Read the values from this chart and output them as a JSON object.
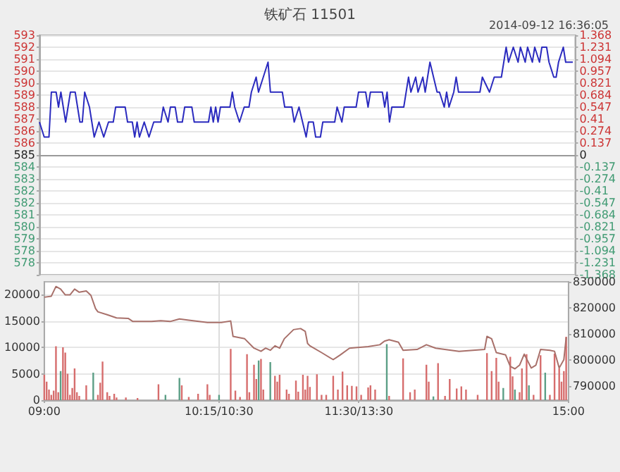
{
  "chart_data": [
    {
      "type": "line",
      "title": "铁矿石 11501",
      "subtitle": "2014-09-12 16:36:05",
      "marker": "none",
      "grid": "y",
      "tick_labels": "y",
      "categories": [
        null,
        null,
        null,
        null,
        null,
        null,
        null,
        null,
        null,
        null,
        null,
        null,
        null,
        null,
        null,
        null,
        null,
        null,
        null,
        null,
        null,
        null,
        null,
        null,
        null,
        null,
        null,
        null,
        null,
        null,
        null,
        null,
        null,
        null,
        null,
        null,
        null,
        null,
        null,
        null,
        null,
        null,
        null,
        null,
        null,
        null,
        null,
        null,
        null,
        null,
        null,
        null,
        null,
        null,
        null,
        null,
        null,
        null,
        null,
        null,
        null,
        null,
        null,
        null,
        null,
        null,
        null,
        null,
        null,
        null,
        null,
        null,
        null,
        null,
        null,
        null,
        null,
        null,
        null,
        null,
        null,
        null,
        null,
        null,
        null,
        null,
        null,
        null,
        null,
        null,
        null,
        null,
        null,
        null,
        null,
        null,
        null,
        null,
        null,
        null,
        null,
        null,
        null,
        null,
        null,
        null,
        null,
        null,
        null,
        null,
        null,
        null,
        null,
        null,
        null,
        null,
        null,
        null,
        null,
        null,
        null,
        null,
        null,
        null,
        null,
        null,
        null,
        null,
        null,
        null,
        null,
        null,
        null,
        null,
        null,
        null,
        null,
        null,
        null,
        null,
        null,
        null,
        null,
        null,
        null,
        null,
        null,
        null,
        null,
        null,
        null,
        null,
        null,
        null,
        null,
        null,
        null,
        null,
        null,
        null,
        null,
        null,
        null,
        null,
        null,
        null,
        null,
        null,
        null,
        null,
        null,
        null,
        null,
        null,
        null,
        null,
        null,
        null,
        null,
        null,
        null,
        null,
        null,
        null,
        null,
        null,
        null,
        null,
        null,
        null,
        null,
        null,
        null,
        null,
        null,
        null,
        null,
        null,
        null,
        null,
        null,
        null,
        null,
        null,
        null,
        null,
        null,
        null,
        null,
        null,
        null,
        null,
        null,
        null,
        null,
        null,
        null,
        null,
        null,
        null,
        null,
        null,
        null,
        null,
        null,
        null
      ],
      "ylim": [
        576.8,
        592.8
      ],
      "yticks": [
        {
          "value": 592.8,
          "label": "593"
        },
        {
          "value": 592.0,
          "label": "592"
        },
        {
          "value": 591.2,
          "label": "591"
        },
        {
          "value": 590.4,
          "label": "590"
        },
        {
          "value": 589.6,
          "label": "590"
        },
        {
          "value": 588.8,
          "label": "589"
        },
        {
          "value": 588.0,
          "label": "588"
        },
        {
          "value": 587.2,
          "label": "587"
        },
        {
          "value": 586.4,
          "label": "586"
        },
        {
          "value": 585.6,
          "label": "586"
        },
        {
          "value": 584.8,
          "label": "585"
        },
        {
          "value": 584.0,
          "label": "584"
        },
        {
          "value": 583.2,
          "label": "583"
        },
        {
          "value": 582.4,
          "label": "582"
        },
        {
          "value": 581.6,
          "label": "582"
        },
        {
          "value": 580.8,
          "label": "581"
        },
        {
          "value": 580.0,
          "label": "580"
        },
        {
          "value": 579.2,
          "label": "579"
        },
        {
          "value": 578.4,
          "label": "578"
        },
        {
          "value": 577.6,
          "label": "578"
        },
        {
          "value": 576.8,
          "label": null
        }
      ],
      "y2lim": [
        -1.368,
        1.368
      ],
      "y2ticks": [
        1.368,
        1.231,
        1.094,
        0.957,
        0.821,
        0.684,
        0.547,
        0.41,
        0.274,
        0.137,
        0,
        -0.137,
        -0.274,
        -0.41,
        -0.547,
        -0.684,
        -0.821,
        -0.957,
        -1.094,
        -1.231,
        -1.368
      ],
      "ref_lines": [
        {
          "axis": "y",
          "value": 584.8,
          "color": "#9a9a9a"
        }
      ],
      "series": [
        {
          "color": "#2b2bbf",
          "values": [
            587,
            null,
            586,
            null,
            586,
            589,
            null,
            589,
            588,
            589,
            null,
            587,
            null,
            589,
            null,
            589,
            null,
            587,
            587,
            589,
            null,
            588,
            null,
            586,
            null,
            587,
            null,
            586,
            null,
            587,
            null,
            587,
            588,
            null,
            null,
            null,
            588,
            587,
            null,
            587,
            586,
            587,
            586,
            null,
            587,
            null,
            586,
            null,
            587,
            null,
            null,
            587,
            588,
            null,
            587,
            588,
            null,
            588,
            587,
            null,
            587,
            588,
            null,
            null,
            588,
            587,
            null,
            null,
            null,
            null,
            null,
            587,
            588,
            587,
            588,
            587,
            588,
            null,
            null,
            null,
            588,
            589,
            588,
            null,
            587,
            null,
            588,
            null,
            588,
            589,
            null,
            590,
            589,
            null,
            590,
            null,
            591,
            589,
            null,
            null,
            null,
            null,
            589,
            588,
            null,
            null,
            588,
            587,
            null,
            588,
            null,
            null,
            586,
            587,
            null,
            587,
            586,
            null,
            586,
            587,
            null,
            null,
            null,
            null,
            587,
            588,
            null,
            587,
            588,
            null,
            null,
            null,
            null,
            588,
            589,
            null,
            null,
            589,
            588,
            589,
            null,
            null,
            null,
            null,
            589,
            588,
            589,
            587,
            588,
            null,
            null,
            null,
            null,
            588,
            null,
            590,
            589,
            null,
            590,
            589,
            null,
            590,
            589,
            null,
            591,
            null,
            null,
            589,
            589,
            null,
            588,
            589,
            588,
            null,
            589,
            590,
            589,
            null,
            null,
            null,
            null,
            null,
            null,
            null,
            null,
            589,
            590,
            null,
            null,
            589,
            null,
            590,
            null,
            null,
            590,
            null,
            592,
            591,
            null,
            592,
            null,
            591,
            592,
            null,
            591,
            592,
            null,
            591,
            592,
            null,
            591,
            592,
            null,
            592,
            591,
            null,
            590,
            590,
            591,
            null,
            592,
            591,
            null,
            null,
            591,
            null
          ]
        }
      ]
    },
    {
      "type": "bar",
      "marker": "none",
      "grid": true,
      "categories": [
        "09:00",
        null,
        null,
        null,
        null,
        null,
        null,
        null,
        null,
        null,
        null,
        null,
        null,
        null,
        null,
        null,
        null,
        null,
        null,
        null,
        null,
        null,
        null,
        null,
        null,
        null,
        null,
        null,
        null,
        null,
        null,
        null,
        null,
        null,
        null,
        null,
        null,
        null,
        null,
        null,
        null,
        null,
        null,
        null,
        null,
        null,
        null,
        null,
        null,
        null,
        null,
        null,
        null,
        null,
        null,
        null,
        null,
        null,
        null,
        null,
        null,
        null,
        null,
        null,
        null,
        null,
        null,
        null,
        null,
        null,
        null,
        null,
        null,
        null,
        null,
        "10:15/10:30",
        null,
        null,
        null,
        null,
        null,
        null,
        null,
        null,
        null,
        null,
        null,
        null,
        null,
        null,
        null,
        null,
        null,
        null,
        null,
        null,
        null,
        null,
        null,
        null,
        null,
        null,
        null,
        null,
        null,
        null,
        null,
        null,
        null,
        null,
        null,
        null,
        null,
        null,
        null,
        null,
        null,
        null,
        null,
        null,
        null,
        null,
        null,
        null,
        null,
        null,
        null,
        null,
        null,
        null,
        null,
        null,
        null,
        null,
        null,
        "11:30/13:30",
        null,
        null,
        null,
        null,
        null,
        null,
        null,
        null,
        null,
        null,
        null,
        null,
        null,
        null,
        null,
        null,
        null,
        null,
        null,
        null,
        null,
        null,
        null,
        null,
        null,
        null,
        null,
        null,
        null,
        null,
        null,
        null,
        null,
        null,
        null,
        null,
        null,
        null,
        null,
        null,
        null,
        null,
        null,
        null,
        null,
        null,
        null,
        null,
        null,
        null,
        null,
        null,
        null,
        null,
        null,
        null,
        null,
        null,
        null,
        null,
        null,
        null,
        null,
        null,
        null,
        null,
        null,
        null,
        null,
        null,
        null,
        null,
        null,
        null,
        null,
        null,
        null,
        null,
        null,
        null,
        null,
        null,
        null,
        null,
        null,
        null,
        null,
        null,
        null,
        "15:00"
      ],
      "ylim": [
        0,
        22400
      ],
      "yticks": [
        0,
        5000,
        10000,
        15000,
        20000
      ],
      "y2lim": [
        784700,
        830000
      ],
      "y2ticks": [
        790000,
        800000,
        810000,
        820000,
        830000
      ],
      "series": [
        {
          "color": "#d66d6d",
          "values": [
            4800,
            3500,
            2000,
            1000,
            1800,
            10200,
            1500,
            null,
            10000,
            9000,
            5000,
            1000,
            2300,
            6000,
            1500,
            800,
            null,
            null,
            2800,
            null,
            null,
            null,
            null,
            1000,
            3300,
            7300,
            null,
            1500,
            800,
            null,
            1200,
            500,
            null,
            null,
            null,
            500,
            null,
            null,
            null,
            null,
            400,
            null,
            null,
            null,
            null,
            null,
            null,
            null,
            null,
            3000,
            null,
            null,
            null,
            null,
            null,
            null,
            null,
            null,
            null,
            2800,
            null,
            null,
            600,
            null,
            null,
            null,
            1200,
            null,
            null,
            null,
            3000,
            1000,
            null,
            null,
            null,
            null,
            null,
            null,
            null,
            null,
            9700,
            null,
            1800,
            null,
            600,
            null,
            null,
            8700,
            1500,
            null,
            6700,
            4000,
            null,
            7800,
            2000,
            null,
            null,
            null,
            null,
            4600,
            3500,
            4800,
            null,
            null,
            2000,
            1200,
            null,
            null,
            3700,
            1600,
            null,
            4800,
            2000,
            4600,
            2500,
            null,
            null,
            4900,
            null,
            1000,
            null,
            1000,
            null,
            null,
            4600,
            null,
            2000,
            null,
            5400,
            null,
            2800,
            null,
            2700,
            null,
            2600,
            null,
            1000,
            null,
            null,
            2400,
            2800,
            null,
            2000,
            null,
            null,
            null,
            null,
            null,
            800,
            null,
            null,
            null,
            null,
            null,
            7900,
            null,
            null,
            1500,
            null,
            2000,
            null,
            null,
            null,
            null,
            6700,
            3500,
            null,
            null,
            null,
            7000,
            null,
            null,
            800,
            null,
            4000,
            null,
            null,
            2200,
            null,
            2600,
            null,
            2000,
            null,
            null,
            null,
            null,
            1000,
            null,
            null,
            null,
            8900,
            null,
            5500,
            null,
            8000,
            3500,
            null,
            null,
            null,
            null,
            8200,
            4500,
            null,
            null,
            1500,
            6000,
            null,
            8700,
            null,
            null,
            1000,
            null,
            null,
            8500,
            null,
            null,
            null,
            1000,
            null,
            8800,
            null,
            6000,
            3500,
            5500,
            12000,
            null
          ]
        },
        {
          "color": "#5c9f86",
          "values": [
            null,
            null,
            null,
            null,
            null,
            null,
            null,
            5500,
            null,
            null,
            null,
            null,
            null,
            null,
            null,
            null,
            null,
            null,
            null,
            null,
            null,
            5200,
            null,
            null,
            null,
            null,
            null,
            null,
            null,
            null,
            null,
            null,
            null,
            null,
            null,
            null,
            null,
            null,
            null,
            null,
            null,
            null,
            null,
            null,
            null,
            null,
            null,
            null,
            null,
            null,
            null,
            null,
            1000,
            null,
            null,
            null,
            null,
            null,
            4200,
            null,
            null,
            null,
            null,
            null,
            null,
            null,
            null,
            null,
            null,
            null,
            null,
            null,
            null,
            null,
            null,
            1000,
            null,
            null,
            null,
            null,
            null,
            null,
            null,
            null,
            null,
            null,
            null,
            null,
            null,
            null,
            null,
            null,
            7500,
            null,
            null,
            null,
            null,
            7200,
            null,
            null,
            null,
            null,
            null,
            null,
            null,
            null,
            null,
            null,
            null,
            null,
            null,
            null,
            null,
            null,
            null,
            null,
            null,
            null,
            null,
            null,
            null,
            null,
            null,
            null,
            null,
            null,
            null,
            null,
            null,
            null,
            null,
            null,
            null,
            null,
            null,
            null,
            null,
            null,
            null,
            null,
            null,
            null,
            null,
            null,
            null,
            null,
            null,
            10600,
            null,
            null,
            null,
            null,
            null,
            null,
            null,
            null,
            null,
            null,
            null,
            null,
            null,
            null,
            null,
            null,
            null,
            null,
            null,
            700,
            null,
            null,
            null,
            null,
            null,
            null,
            null,
            null,
            null,
            null,
            null,
            null,
            null,
            null,
            null,
            null,
            null,
            null,
            null,
            null,
            null,
            null,
            null,
            null,
            null,
            null,
            null,
            null,
            null,
            2300,
            null,
            null,
            null,
            null,
            2000,
            null,
            null,
            null,
            null,
            null,
            2800,
            null,
            null,
            null,
            null,
            null,
            null,
            5200,
            null,
            null,
            null,
            null,
            null,
            null,
            null,
            null,
            null,
            null
          ]
        },
        {
          "type": "line",
          "axis": "y2",
          "color": "#a8706a",
          "values": [
            824100,
            null,
            null,
            824500,
            null,
            828200,
            null,
            827200,
            null,
            825000,
            null,
            825000,
            null,
            827200,
            null,
            826000,
            null,
            null,
            826500,
            null,
            824800,
            null,
            819700,
            818500,
            null,
            null,
            null,
            817400,
            null,
            null,
            null,
            816200,
            null,
            null,
            null,
            null,
            816000,
            null,
            814800,
            null,
            null,
            null,
            null,
            null,
            null,
            null,
            814800,
            null,
            null,
            null,
            815100,
            null,
            null,
            null,
            814800,
            null,
            null,
            null,
            815800,
            null,
            null,
            null,
            815300,
            null,
            null,
            null,
            null,
            null,
            null,
            null,
            814400,
            null,
            null,
            null,
            null,
            null,
            814400,
            null,
            null,
            null,
            815000,
            809100,
            null,
            null,
            null,
            null,
            808200,
            null,
            null,
            null,
            804600,
            null,
            null,
            803400,
            null,
            804600,
            null,
            803800,
            null,
            805500,
            null,
            804600,
            null,
            808200,
            null,
            null,
            null,
            811700,
            null,
            null,
            812100,
            null,
            811000,
            806400,
            805500,
            null,
            null,
            null,
            null,
            802900,
            null,
            null,
            null,
            null,
            800200,
            null,
            null,
            802000,
            null,
            null,
            null,
            804600,
            null,
            null,
            null,
            null,
            null,
            null,
            null,
            805200,
            null,
            null,
            null,
            null,
            805900,
            null,
            807300,
            null,
            807800,
            null,
            null,
            null,
            806900,
            null,
            803800,
            null,
            null,
            null,
            null,
            null,
            804100,
            null,
            null,
            null,
            805900,
            null,
            null,
            null,
            804600,
            null,
            null,
            null,
            null,
            null,
            null,
            null,
            null,
            null,
            803400,
            null,
            null,
            null,
            null,
            null,
            null,
            null,
            null,
            null,
            null,
            804100,
            809100,
            null,
            808200,
            null,
            802900,
            null,
            null,
            null,
            802000,
            null,
            797600,
            null,
            796700,
            null,
            798100,
            null,
            802300,
            null,
            null,
            797000,
            null,
            798100,
            null,
            804100,
            null,
            null,
            null,
            803800,
            null,
            803400,
            null,
            797000,
            null,
            800200,
            808700,
            null
          ]
        }
      ]
    }
  ]
}
